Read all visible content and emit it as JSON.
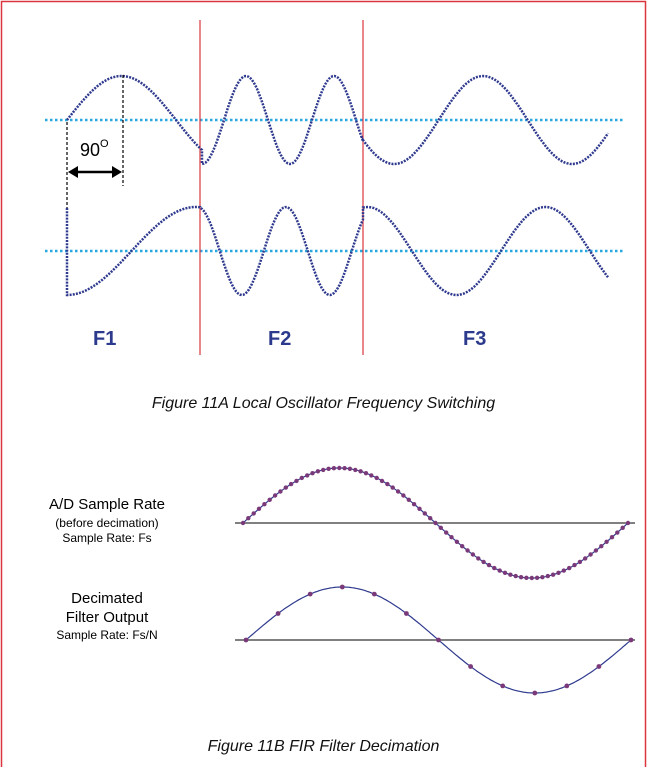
{
  "fig_a": {
    "bands": [
      "F1",
      "F2",
      "F3"
    ],
    "phase_label": "90",
    "phase_unit": "O",
    "caption": "Figure 11A Local Oscillator Frequency Switching"
  },
  "fig_b": {
    "row1": {
      "title": "A/D Sample Rate",
      "sub": "(before decimation)",
      "rate": "Sample Rate: Fs"
    },
    "row2": {
      "title1": "Decimated",
      "title2": "Filter Output",
      "rate": "Sample Rate: Fs/N"
    },
    "caption": "Figure 11B FIR Filter Decimation"
  },
  "colors": {
    "border": "#d9363e",
    "wave": "#2f3a8f",
    "dots": "#7a3a7a",
    "ref_line": "#2aa7de",
    "divider": "#d9363e"
  }
}
